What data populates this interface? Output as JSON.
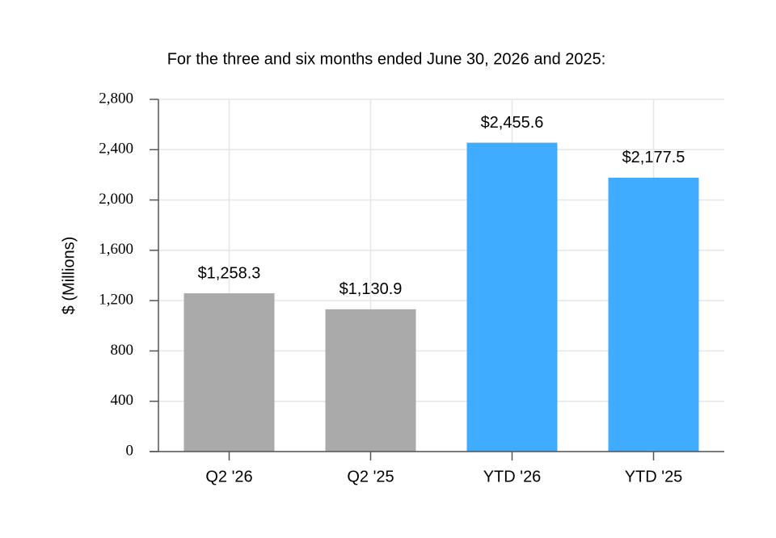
{
  "chart_data": {
    "type": "bar",
    "title": "For the three and six months ended June 30, 2026 and 2025:",
    "ylabel": "$ (Millions)",
    "categories": [
      "Q2 '26",
      "Q2 '25",
      "YTD '26",
      "YTD '25"
    ],
    "values": [
      1258.3,
      1130.9,
      2455.6,
      2177.5
    ],
    "value_labels": [
      "$1,258.3",
      "$1,130.9",
      "$2,455.6",
      "$2,177.5"
    ],
    "colors": [
      "#aaaaaa",
      "#aaaaaa",
      "#40acff",
      "#40acff"
    ],
    "ylim": [
      0,
      2800
    ],
    "yticks": [
      0,
      400,
      800,
      {
        "value": 1200,
        "label": "1,200"
      },
      {
        "value": 1600,
        "label": "1,600"
      },
      {
        "value": 2000,
        "label": "2,000"
      },
      {
        "value": 2400,
        "label": "2,400"
      },
      {
        "value": 2800,
        "label": "2,800"
      }
    ],
    "grid": true
  }
}
